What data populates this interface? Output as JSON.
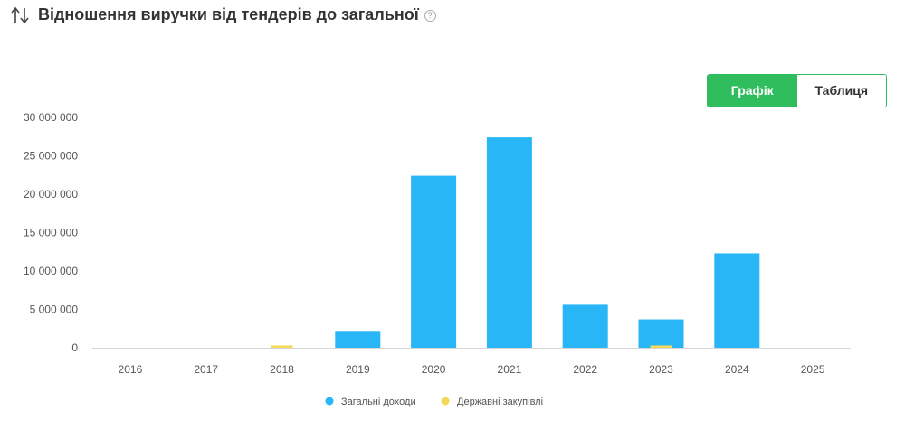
{
  "header": {
    "title": "Відношення виручки від тендерів до загальної",
    "help_glyph": "?"
  },
  "view_toggle": {
    "options": [
      "Графік",
      "Таблиця"
    ],
    "selected": "Графік"
  },
  "colors": {
    "series_total": "#29b6f6",
    "series_tenders": "#f2da57",
    "accent": "#2fbd5e"
  },
  "chart_data": {
    "type": "bar",
    "categories": [
      "2016",
      "2017",
      "2018",
      "2019",
      "2020",
      "2021",
      "2022",
      "2023",
      "2024",
      "2025"
    ],
    "series": [
      {
        "name": "Загальні доходи",
        "values": [
          0,
          0,
          0,
          2200000,
          22400000,
          27400000,
          5600000,
          3700000,
          12300000,
          0
        ]
      },
      {
        "name": "Державні закупівлі",
        "values": [
          0,
          0,
          300000,
          0,
          0,
          0,
          0,
          300000,
          0,
          0
        ]
      }
    ],
    "y_ticks": [
      "30 000 000",
      "25 000 000",
      "20 000 000",
      "15 000 000",
      "10 000 000",
      "5 000 000",
      "0"
    ],
    "ylim": [
      0,
      30000000
    ],
    "legend_position": "bottom",
    "grid": false
  }
}
